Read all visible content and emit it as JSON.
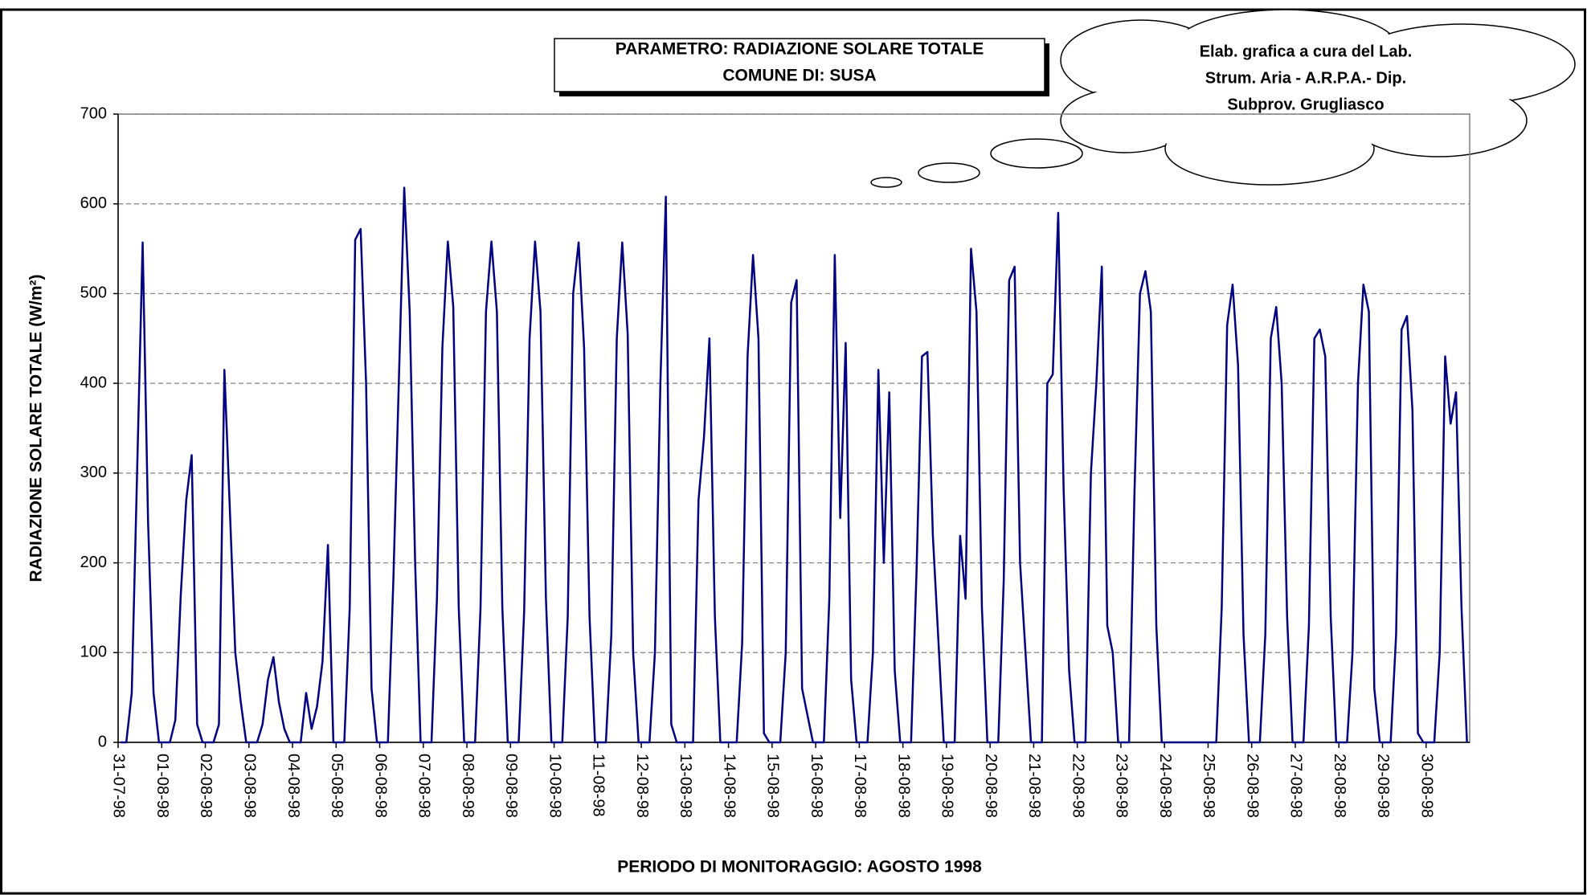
{
  "chart_data": {
    "type": "line",
    "title": [
      "PARAMETRO: RADIAZIONE SOLARE TOTALE",
      "COMUNE DI: SUSA"
    ],
    "annotation": [
      "Elab. grafica a cura del Lab.",
      "Strum. Aria - A.R.P.A.- Dip.",
      "Subprov. Grugliasco"
    ],
    "x_label": "PERIODO DI MONITORAGGIO: AGOSTO 1998",
    "y_label": "RADIAZIONE SOLARE TOTALE (W/m²)",
    "color": "#000080",
    "ylim": [
      0,
      700
    ],
    "yticks": [
      0,
      100,
      200,
      300,
      400,
      500,
      600,
      700
    ],
    "grid": true,
    "categories": [
      "31-07-98",
      null,
      null,
      null,
      null,
      null,
      null,
      null,
      "01-08-98",
      null,
      null,
      null,
      null,
      null,
      null,
      null,
      "02-08-98",
      null,
      null,
      null,
      null,
      null,
      null,
      null,
      "03-08-98",
      null,
      null,
      null,
      null,
      null,
      null,
      null,
      "04-08-98",
      null,
      null,
      null,
      null,
      null,
      null,
      null,
      "05-08-98",
      null,
      null,
      null,
      null,
      null,
      null,
      null,
      "06-08-98",
      null,
      null,
      null,
      null,
      null,
      null,
      null,
      "07-08-98",
      null,
      null,
      null,
      null,
      null,
      null,
      null,
      "08-08-98",
      null,
      null,
      null,
      null,
      null,
      null,
      null,
      "09-08-98",
      null,
      null,
      null,
      null,
      null,
      null,
      null,
      "10-08-98",
      null,
      null,
      null,
      null,
      null,
      null,
      null,
      "11-08-98",
      null,
      null,
      null,
      null,
      null,
      null,
      null,
      "12-08-98",
      null,
      null,
      null,
      null,
      null,
      null,
      null,
      "13-08-98",
      null,
      null,
      null,
      null,
      null,
      null,
      null,
      "14-08-98",
      null,
      null,
      null,
      null,
      null,
      null,
      null,
      "15-08-98",
      null,
      null,
      null,
      null,
      null,
      null,
      null,
      "16-08-98",
      null,
      null,
      null,
      null,
      null,
      null,
      null,
      "17-08-98",
      null,
      null,
      null,
      null,
      null,
      null,
      null,
      "18-08-98",
      null,
      null,
      null,
      null,
      null,
      null,
      null,
      "19-08-98",
      null,
      null,
      null,
      null,
      null,
      null,
      null,
      "20-08-98",
      null,
      null,
      null,
      null,
      null,
      null,
      null,
      "21-08-98",
      null,
      null,
      null,
      null,
      null,
      null,
      null,
      "22-08-98",
      null,
      null,
      null,
      null,
      null,
      null,
      null,
      "23-08-98",
      null,
      null,
      null,
      null,
      null,
      null,
      null,
      "24-08-98",
      null,
      null,
      null,
      null,
      null,
      null,
      null,
      "25-08-98",
      null,
      null,
      null,
      null,
      null,
      null,
      null,
      "26-08-98",
      null,
      null,
      null,
      null,
      null,
      null,
      null,
      "27-08-98",
      null,
      null,
      null,
      null,
      null,
      null,
      null,
      "28-08-98",
      null,
      null,
      null,
      null,
      null,
      null,
      null,
      "29-08-98",
      null,
      null,
      null,
      null,
      null,
      null,
      null,
      "30-08-98",
      null,
      null,
      null,
      null,
      null,
      null,
      null
    ],
    "values": [
      0,
      0,
      55,
      305,
      557,
      245,
      55,
      0,
      0,
      0,
      25,
      165,
      270,
      320,
      20,
      0,
      0,
      0,
      20,
      415,
      260,
      100,
      45,
      0,
      0,
      0,
      20,
      70,
      95,
      45,
      15,
      0,
      0,
      0,
      55,
      15,
      40,
      90,
      220,
      0,
      0,
      0,
      150,
      560,
      572,
      400,
      60,
      0,
      0,
      0,
      180,
      400,
      618,
      480,
      200,
      0,
      0,
      0,
      160,
      440,
      558,
      485,
      150,
      0,
      0,
      0,
      150,
      480,
      558,
      480,
      150,
      0,
      0,
      0,
      145,
      450,
      558,
      480,
      160,
      0,
      0,
      0,
      140,
      500,
      557,
      440,
      140,
      0,
      0,
      0,
      120,
      450,
      557,
      455,
      100,
      0,
      0,
      0,
      100,
      400,
      608,
      20,
      0,
      0,
      0,
      0,
      270,
      340,
      450,
      140,
      0,
      0,
      0,
      0,
      110,
      430,
      543,
      450,
      10,
      0,
      0,
      0,
      100,
      490,
      515,
      60,
      30,
      0,
      0,
      0,
      160,
      543,
      250,
      445,
      70,
      0,
      0,
      0,
      100,
      415,
      200,
      390,
      80,
      0,
      0,
      0,
      190,
      430,
      435,
      230,
      115,
      0,
      0,
      0,
      230,
      160,
      550,
      480,
      150,
      0,
      0,
      0,
      180,
      515,
      530,
      200,
      100,
      0,
      0,
      0,
      400,
      410,
      590,
      280,
      80,
      0,
      0,
      0,
      300,
      400,
      530,
      130,
      100,
      0,
      0,
      0,
      280,
      500,
      525,
      480,
      130,
      0,
      0,
      0,
      0,
      0,
      0,
      0,
      0,
      0,
      0,
      0,
      150,
      465,
      510,
      420,
      120,
      0,
      0,
      0,
      120,
      450,
      485,
      400,
      140,
      0,
      0,
      0,
      130,
      450,
      460,
      430,
      140,
      0,
      0,
      0,
      100,
      400,
      510,
      480,
      60,
      0,
      0,
      0,
      120,
      460,
      475,
      370,
      10,
      0,
      0,
      0,
      100,
      430,
      355,
      390,
      150,
      0
    ]
  }
}
